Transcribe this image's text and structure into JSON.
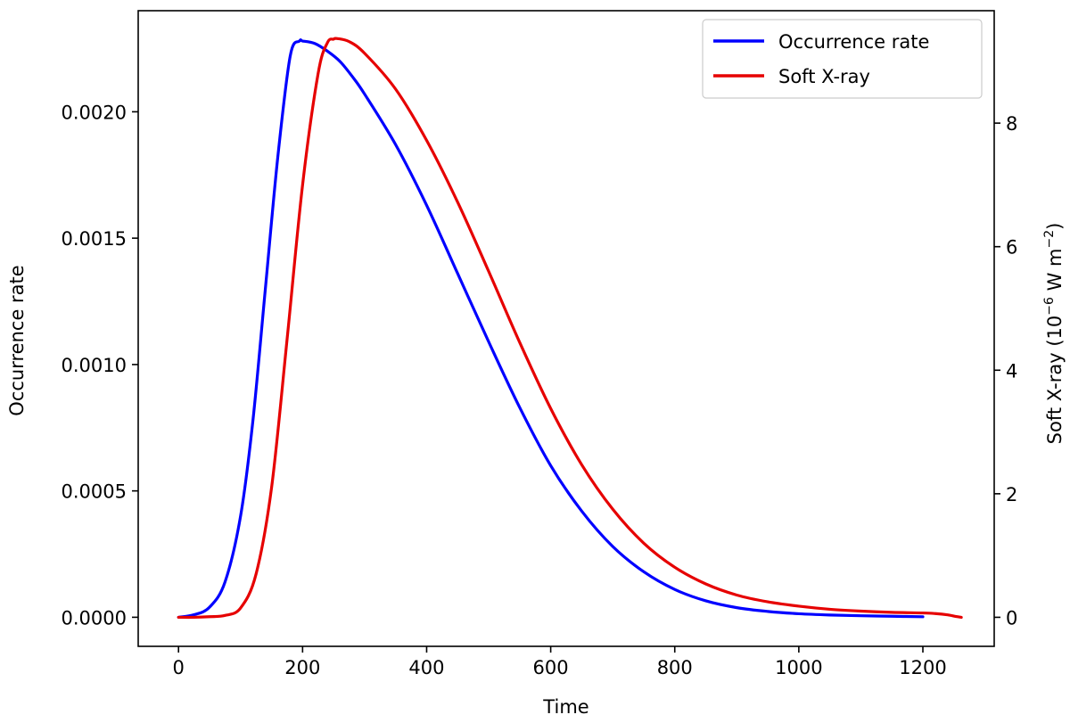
{
  "chart_data": {
    "type": "line",
    "xlabel": "Time",
    "ylabel_left": "Occurrence rate",
    "ylabel_right_parts": [
      "Soft X-ray (10",
      "−6",
      " W m",
      "−2",
      ")"
    ],
    "xlim": [
      -65,
      1315
    ],
    "ylim_left": [
      -0.000115,
      0.0024
    ],
    "ylim_right": [
      -0.47,
      9.82
    ],
    "x_ticks": [
      0,
      200,
      400,
      600,
      800,
      1000,
      1200
    ],
    "x_tick_labels": [
      "0",
      "200",
      "400",
      "600",
      "800",
      "1000",
      "1200"
    ],
    "y_left_ticks": [
      0.0,
      0.0005,
      0.001,
      0.0015,
      0.002
    ],
    "y_left_tick_labels": [
      "0.0000",
      "0.0005",
      "0.0010",
      "0.0015",
      "0.0020"
    ],
    "y_right_ticks": [
      0,
      2,
      4,
      6,
      8
    ],
    "y_right_tick_labels": [
      "0",
      "2",
      "4",
      "6",
      "8"
    ],
    "legend_position": "upper right",
    "series": [
      {
        "name": "Occurrence rate",
        "axis": "left",
        "color": "#0000ff",
        "x": [
          0,
          25,
          50,
          75,
          100,
          120,
          140,
          160,
          180,
          195,
          200,
          220,
          240,
          260,
          280,
          300,
          350,
          400,
          450,
          500,
          550,
          600,
          650,
          700,
          750,
          800,
          850,
          900,
          950,
          1000,
          1050,
          1100,
          1150,
          1200
        ],
        "y": [
          0.0,
          1e-05,
          4e-05,
          0.00014,
          0.0004,
          0.00078,
          0.0013,
          0.00182,
          0.00222,
          0.00228,
          0.00228,
          0.00227,
          0.00224,
          0.0022,
          0.00214,
          0.00207,
          0.00187,
          0.00163,
          0.00136,
          0.00109,
          0.00083,
          0.0006,
          0.00042,
          0.00028,
          0.00018,
          0.00011,
          6.5e-05,
          3.8e-05,
          2.3e-05,
          1.4e-05,
          9e-06,
          6e-06,
          4e-06,
          2e-06
        ]
      },
      {
        "name": "Soft X-ray",
        "axis": "right",
        "color": "#e60000",
        "x": [
          0,
          25,
          50,
          75,
          100,
          125,
          150,
          175,
          200,
          225,
          240,
          250,
          255,
          275,
          300,
          350,
          400,
          450,
          500,
          550,
          600,
          650,
          700,
          750,
          800,
          850,
          900,
          950,
          1000,
          1050,
          1100,
          1150,
          1200,
          1220,
          1240,
          1250,
          1262
        ],
        "y": [
          0.0,
          0.0,
          0.01,
          0.03,
          0.15,
          0.7,
          2.1,
          4.5,
          7.0,
          8.8,
          9.3,
          9.36,
          9.37,
          9.32,
          9.13,
          8.55,
          7.72,
          6.72,
          5.6,
          4.45,
          3.38,
          2.47,
          1.75,
          1.2,
          0.81,
          0.54,
          0.36,
          0.25,
          0.18,
          0.13,
          0.1,
          0.08,
          0.07,
          0.06,
          0.04,
          0.02,
          0.0
        ]
      }
    ]
  }
}
